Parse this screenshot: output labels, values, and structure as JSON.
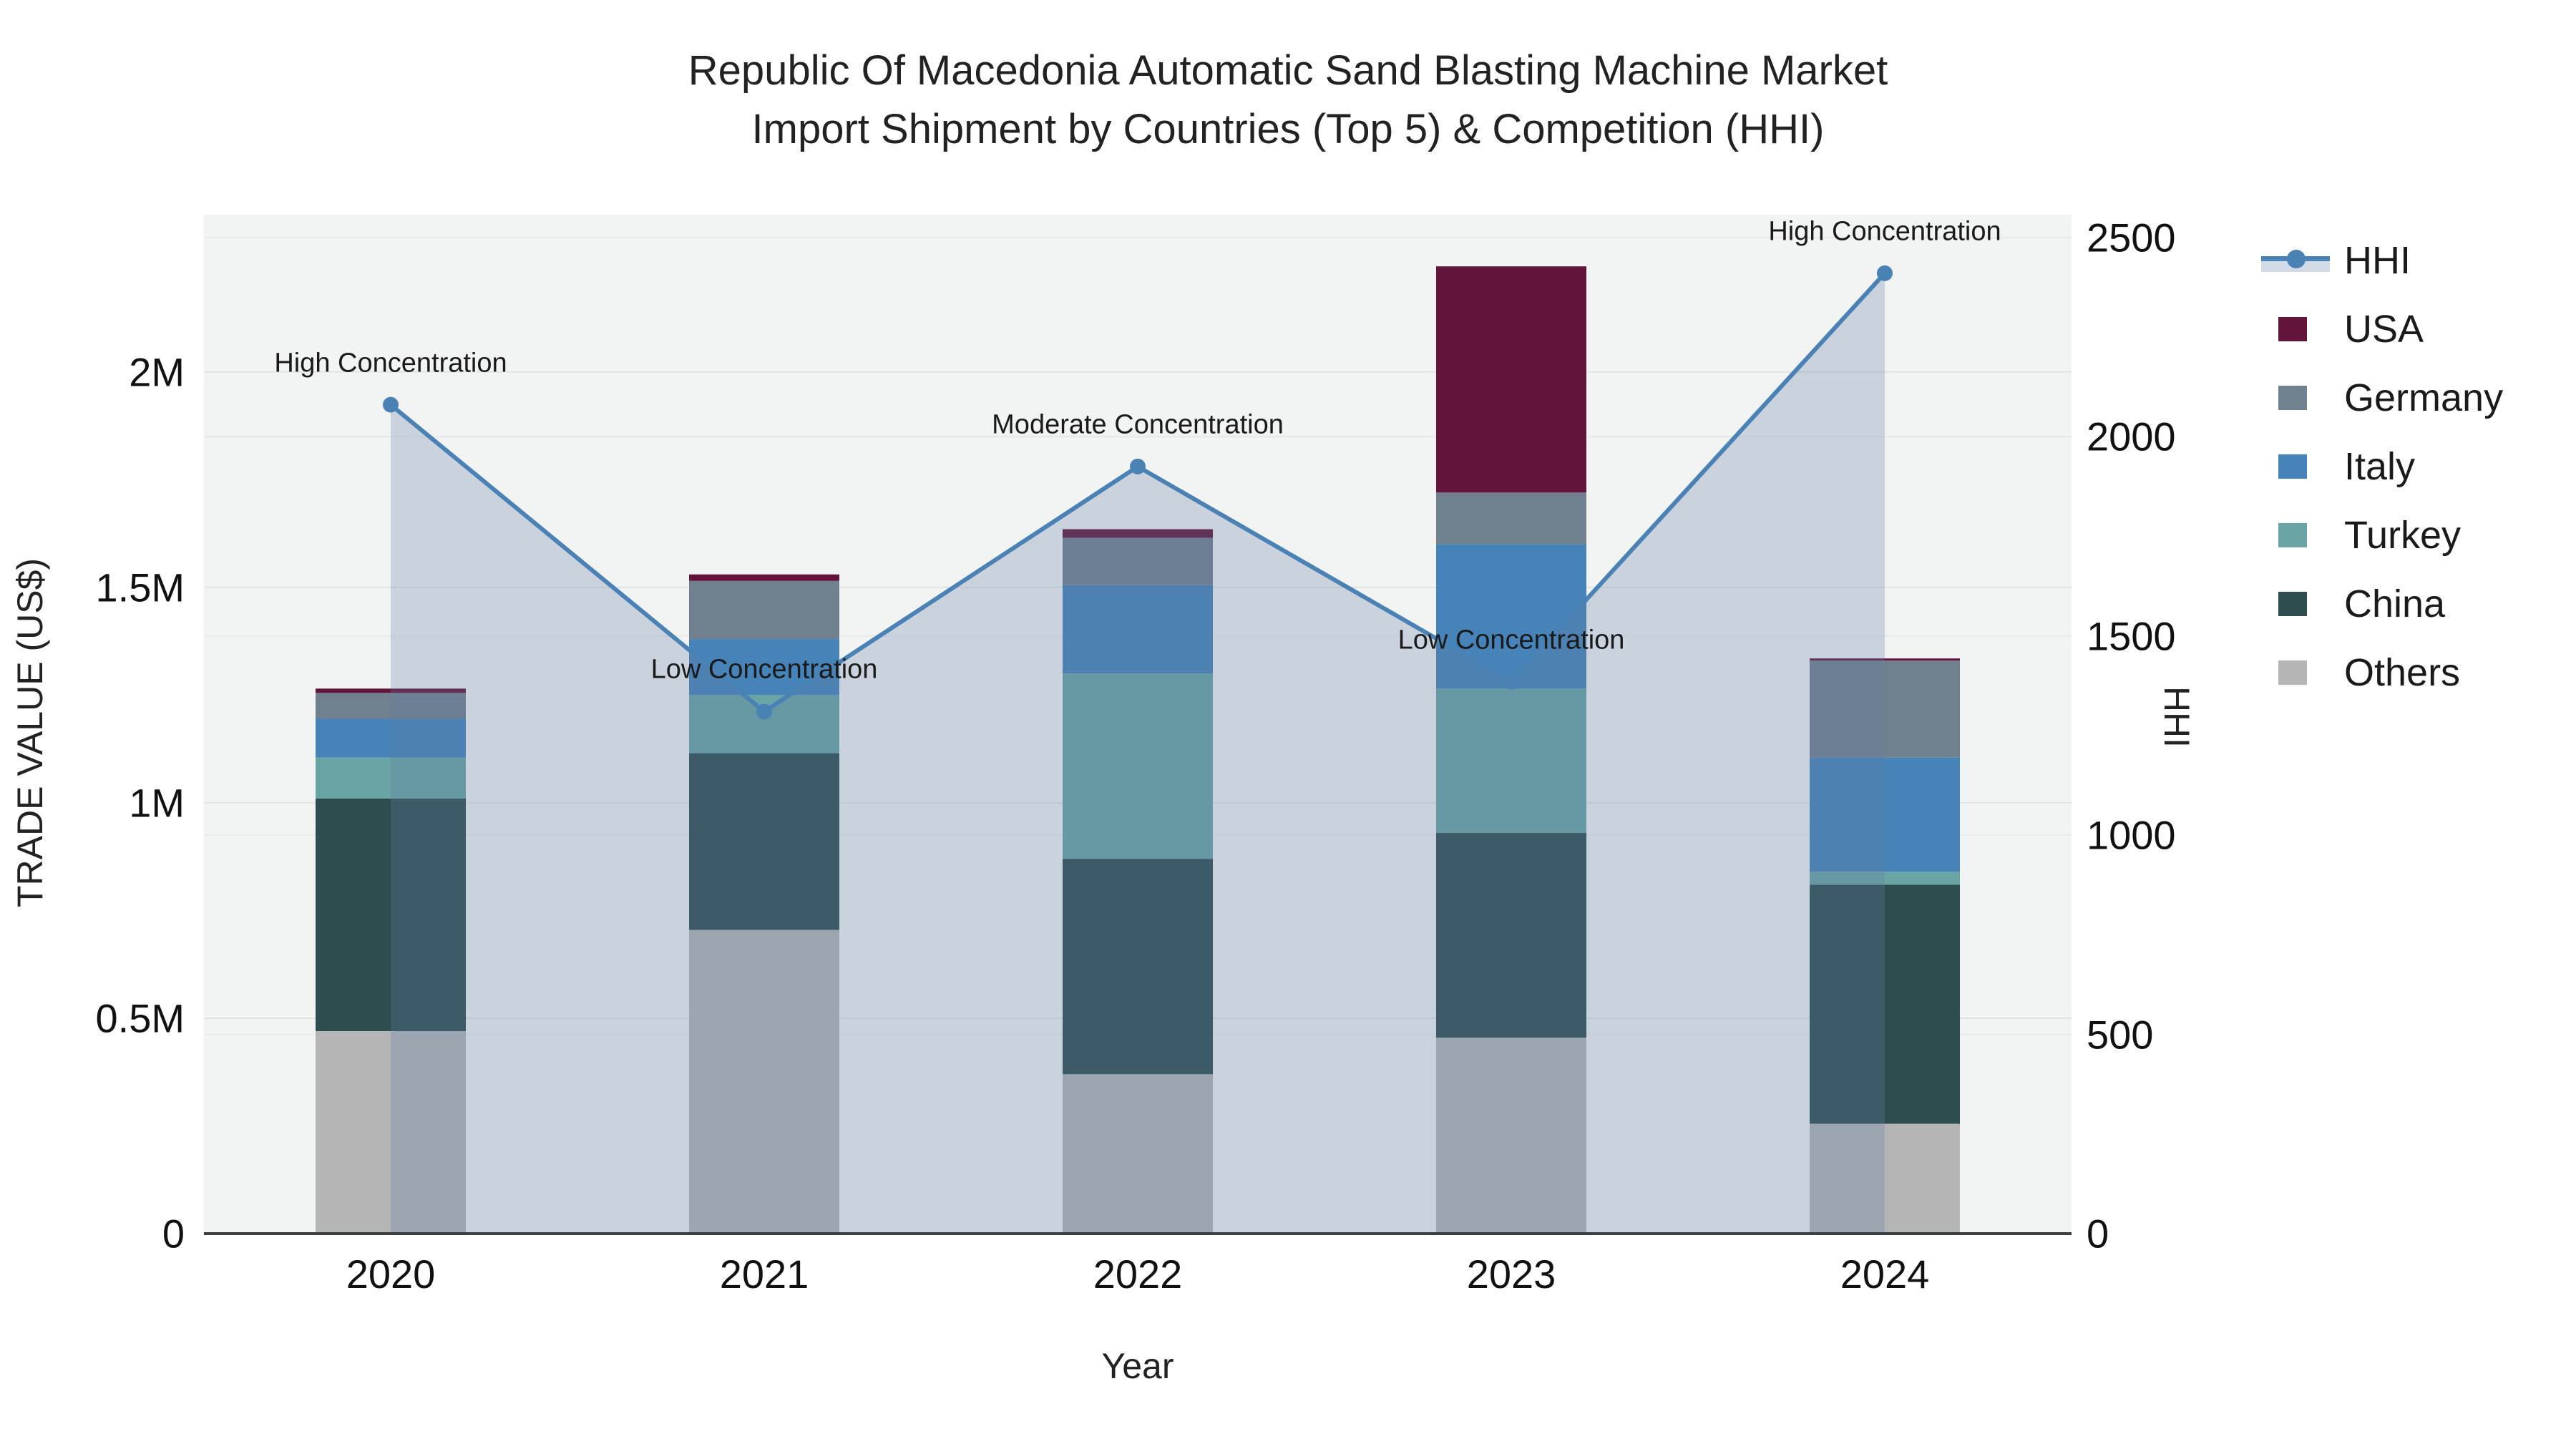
{
  "title": {
    "line1": "Republic Of Macedonia Automatic Sand Blasting Machine Market",
    "line2": "Import Shipment by Countries (Top 5) & Competition (HHI)"
  },
  "colors": {
    "plot_background": "#f2f3f3",
    "grid_left": "#e2e4e4",
    "grid_right": "#e8eaea",
    "axis_line": "#3c4043",
    "hhi_line": "#4a82b6",
    "hhi_fill": "rgba(98,126,164,0.28)",
    "usa": "#62143a",
    "germany": "#71808f",
    "italy": "#4583b8",
    "turkey": "#6aa4a5",
    "china": "#2e4d4f",
    "others": "#b5b5b5"
  },
  "chart_data": {
    "type": "bar+line",
    "title": "Republic Of Macedonia Automatic Sand Blasting Machine Market Import Shipment by Countries (Top 5) & Competition (HHI)",
    "categories": [
      "2020",
      "2021",
      "2022",
      "2023",
      "2024"
    ],
    "stack_order_bottom_to_top": [
      "Others",
      "China",
      "Turkey",
      "Italy",
      "Germany",
      "USA"
    ],
    "bar_series": [
      {
        "name": "USA",
        "color": "#62143a",
        "values": [
          10000,
          15000,
          20000,
          525000,
          5000
        ]
      },
      {
        "name": "Germany",
        "color": "#71808f",
        "values": [
          60000,
          135000,
          110000,
          120000,
          225000
        ]
      },
      {
        "name": "Italy",
        "color": "#4583b8",
        "values": [
          90000,
          130000,
          205000,
          335000,
          265000
        ]
      },
      {
        "name": "Turkey",
        "color": "#6aa4a5",
        "values": [
          95000,
          135000,
          430000,
          335000,
          30000
        ]
      },
      {
        "name": "China",
        "color": "#2e4d4f",
        "values": [
          540000,
          410000,
          500000,
          475000,
          555000
        ]
      },
      {
        "name": "Others",
        "color": "#b5b5b5",
        "values": [
          470000,
          705000,
          370000,
          455000,
          255000
        ]
      }
    ],
    "line_series": {
      "name": "HHI",
      "color": "#4a82b6",
      "fill": "rgba(98,126,164,0.28)",
      "yaxis": "right",
      "values": [
        2080,
        1310,
        1925,
        1385,
        2410
      ]
    },
    "annotations": [
      {
        "category": "2020",
        "text": "High Concentration"
      },
      {
        "category": "2021",
        "text": "Low Concentration"
      },
      {
        "category": "2022",
        "text": "Moderate Concentration"
      },
      {
        "category": "2023",
        "text": "Low Concentration"
      },
      {
        "category": "2024",
        "text": "High Concentration"
      }
    ],
    "x_axis": {
      "title": "Year"
    },
    "y_left": {
      "title": "TRADE VALUE (US$)",
      "range": [
        0,
        2365000
      ],
      "grid": true,
      "ticks": [
        {
          "v": 0,
          "label": "0"
        },
        {
          "v": 500000,
          "label": "0.5M"
        },
        {
          "v": 1000000,
          "label": "1M"
        },
        {
          "v": 1500000,
          "label": "1.5M"
        },
        {
          "v": 2000000,
          "label": "2M"
        }
      ]
    },
    "y_right": {
      "title": "HHI",
      "range": [
        0,
        2557
      ],
      "grid": true,
      "ticks": [
        {
          "v": 0,
          "label": "0"
        },
        {
          "v": 500,
          "label": "500"
        },
        {
          "v": 1000,
          "label": "1000"
        },
        {
          "v": 1500,
          "label": "1500"
        },
        {
          "v": 2000,
          "label": "2000"
        },
        {
          "v": 2500,
          "label": "2500"
        }
      ]
    },
    "legend_position": "right"
  },
  "legend": {
    "items": [
      {
        "label": "HHI",
        "type": "line",
        "color": "#4a82b6"
      },
      {
        "label": "USA",
        "type": "swatch",
        "color": "#62143a"
      },
      {
        "label": "Germany",
        "type": "swatch",
        "color": "#71808f"
      },
      {
        "label": "Italy",
        "type": "swatch",
        "color": "#4583b8"
      },
      {
        "label": "Turkey",
        "type": "swatch",
        "color": "#6aa4a5"
      },
      {
        "label": "China",
        "type": "swatch",
        "color": "#2e4d4f"
      },
      {
        "label": "Others",
        "type": "swatch",
        "color": "#b5b5b5"
      }
    ]
  }
}
